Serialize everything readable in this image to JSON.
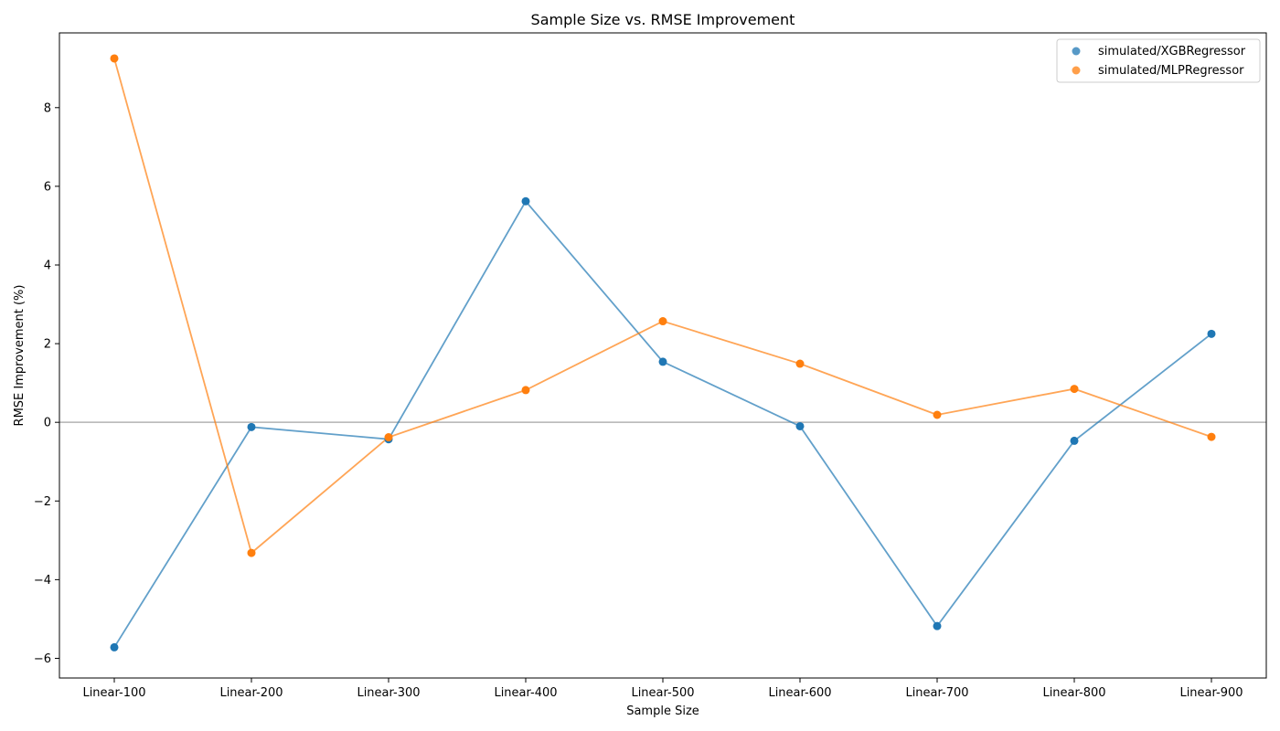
{
  "chart_data": {
    "type": "line",
    "title": "Sample Size vs. RMSE Improvement",
    "xlabel": "Sample Size",
    "ylabel": "RMSE Improvement (%)",
    "categories": [
      "Linear-100",
      "Linear-200",
      "Linear-300",
      "Linear-400",
      "Linear-500",
      "Linear-600",
      "Linear-700",
      "Linear-800",
      "Linear-900"
    ],
    "ylim": [
      -6.5,
      9.9
    ],
    "yticks": [
      -6,
      -4,
      -2,
      0,
      2,
      4,
      6,
      8
    ],
    "reference_line": 0,
    "grid": false,
    "legend_position": "top-right",
    "series": [
      {
        "name": "simulated/XGBRegressor",
        "color": "#1f77b4",
        "values": [
          -5.72,
          -0.12,
          -0.43,
          5.62,
          1.54,
          -0.1,
          -5.18,
          -0.47,
          2.25
        ]
      },
      {
        "name": "simulated/MLPRegressor",
        "color": "#ff7f0e",
        "values": [
          9.25,
          -3.32,
          -0.38,
          0.82,
          2.57,
          1.49,
          0.19,
          0.85,
          -0.37
        ]
      }
    ]
  }
}
